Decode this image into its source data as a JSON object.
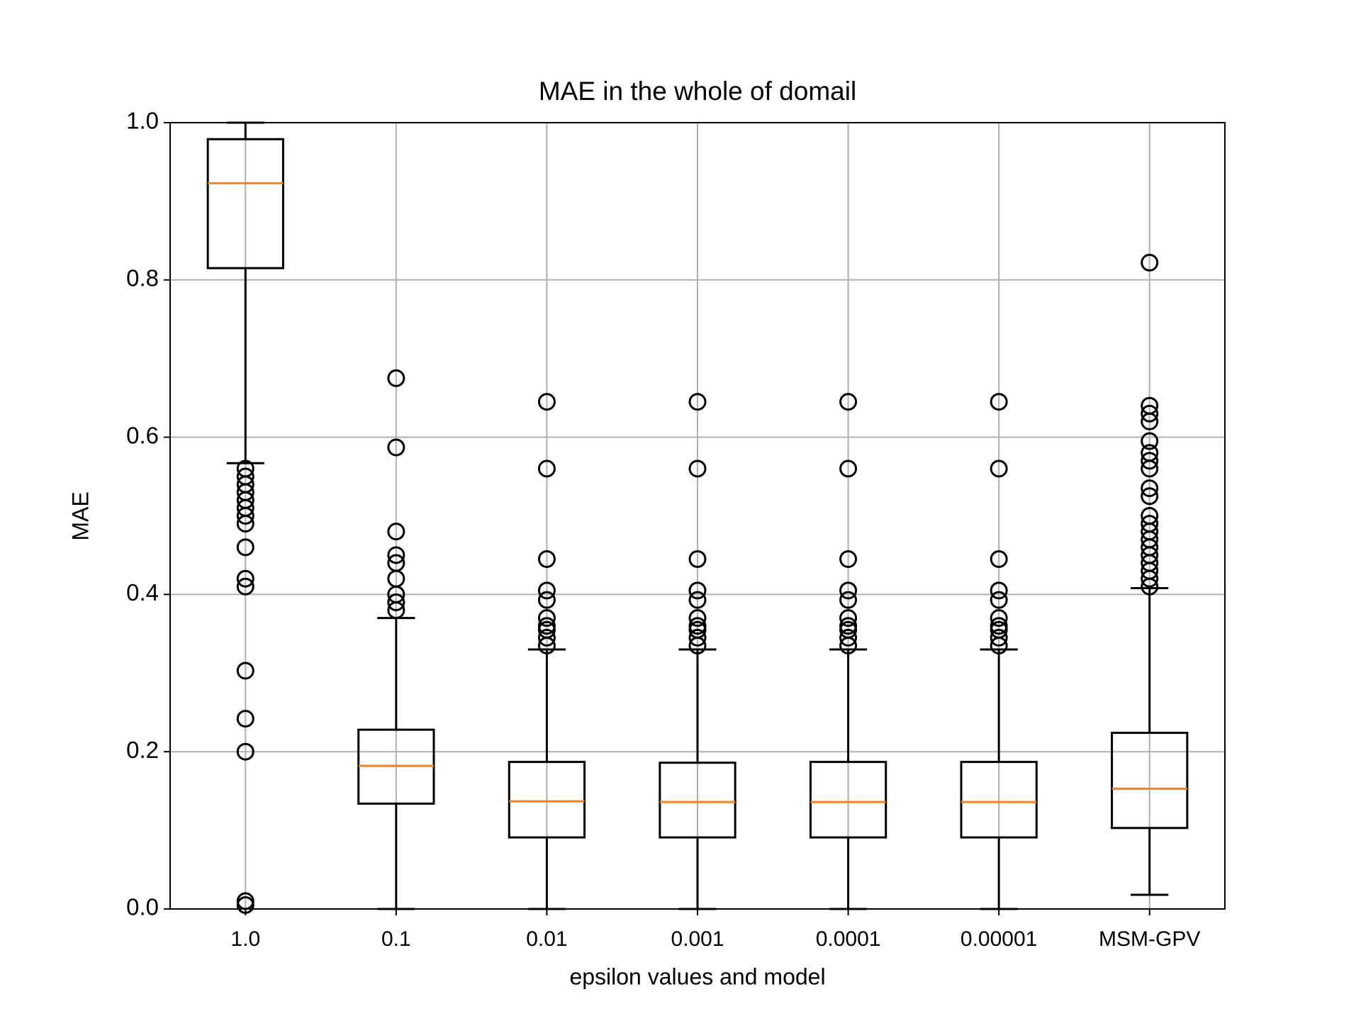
{
  "chart_data": {
    "type": "boxplot",
    "title": "MAE in the whole of domail",
    "xlabel": "epsilon values and model",
    "ylabel": "MAE",
    "categories": [
      "1.0",
      "0.1",
      "0.01",
      "0.001",
      "0.0001",
      "0.00001",
      "MSM-GPV"
    ],
    "boxes": [
      {
        "whislo": 0.567,
        "q1": 0.815,
        "med": 0.923,
        "q3": 0.979,
        "whishi": 1.0,
        "fliers": [
          0.56,
          0.55,
          0.54,
          0.53,
          0.52,
          0.51,
          0.5,
          0.49,
          0.46,
          0.42,
          0.41,
          0.303,
          0.242,
          0.2,
          0.01,
          0.005
        ]
      },
      {
        "whislo": 0.0,
        "q1": 0.134,
        "med": 0.182,
        "q3": 0.228,
        "whishi": 0.37,
        "fliers": [
          0.675,
          0.587,
          0.48,
          0.45,
          0.44,
          0.42,
          0.4,
          0.39,
          0.38
        ]
      },
      {
        "whislo": 0.0,
        "q1": 0.091,
        "med": 0.137,
        "q3": 0.187,
        "whishi": 0.33,
        "fliers": [
          0.645,
          0.56,
          0.445,
          0.405,
          0.393,
          0.37,
          0.36,
          0.355,
          0.345,
          0.335
        ]
      },
      {
        "whislo": 0.0,
        "q1": 0.091,
        "med": 0.136,
        "q3": 0.186,
        "whishi": 0.33,
        "fliers": [
          0.645,
          0.56,
          0.445,
          0.405,
          0.393,
          0.37,
          0.36,
          0.355,
          0.345,
          0.335
        ]
      },
      {
        "whislo": 0.0,
        "q1": 0.091,
        "med": 0.136,
        "q3": 0.187,
        "whishi": 0.33,
        "fliers": [
          0.645,
          0.56,
          0.445,
          0.405,
          0.393,
          0.37,
          0.36,
          0.355,
          0.345,
          0.335
        ]
      },
      {
        "whislo": 0.0,
        "q1": 0.091,
        "med": 0.136,
        "q3": 0.187,
        "whishi": 0.33,
        "fliers": [
          0.645,
          0.56,
          0.445,
          0.405,
          0.393,
          0.37,
          0.36,
          0.355,
          0.345,
          0.335
        ]
      },
      {
        "whislo": 0.018,
        "q1": 0.103,
        "med": 0.153,
        "q3": 0.224,
        "whishi": 0.408,
        "fliers": [
          0.822,
          0.64,
          0.63,
          0.62,
          0.595,
          0.58,
          0.57,
          0.56,
          0.535,
          0.525,
          0.5,
          0.49,
          0.48,
          0.47,
          0.46,
          0.45,
          0.44,
          0.43,
          0.42,
          0.41
        ]
      }
    ],
    "color": "#000000",
    "median_color": "#ff7f0e",
    "ylim": [
      0,
      1
    ],
    "yticks": [
      {
        "value": 0,
        "label": "0.0"
      },
      {
        "value": 0.2,
        "label": "0.2"
      },
      {
        "value": 0.4,
        "label": "0.4"
      },
      {
        "value": 0.6,
        "label": "0.6"
      },
      {
        "value": 0.8,
        "label": "0.8"
      },
      {
        "value": 1,
        "label": "1.0"
      }
    ],
    "grid": true
  }
}
